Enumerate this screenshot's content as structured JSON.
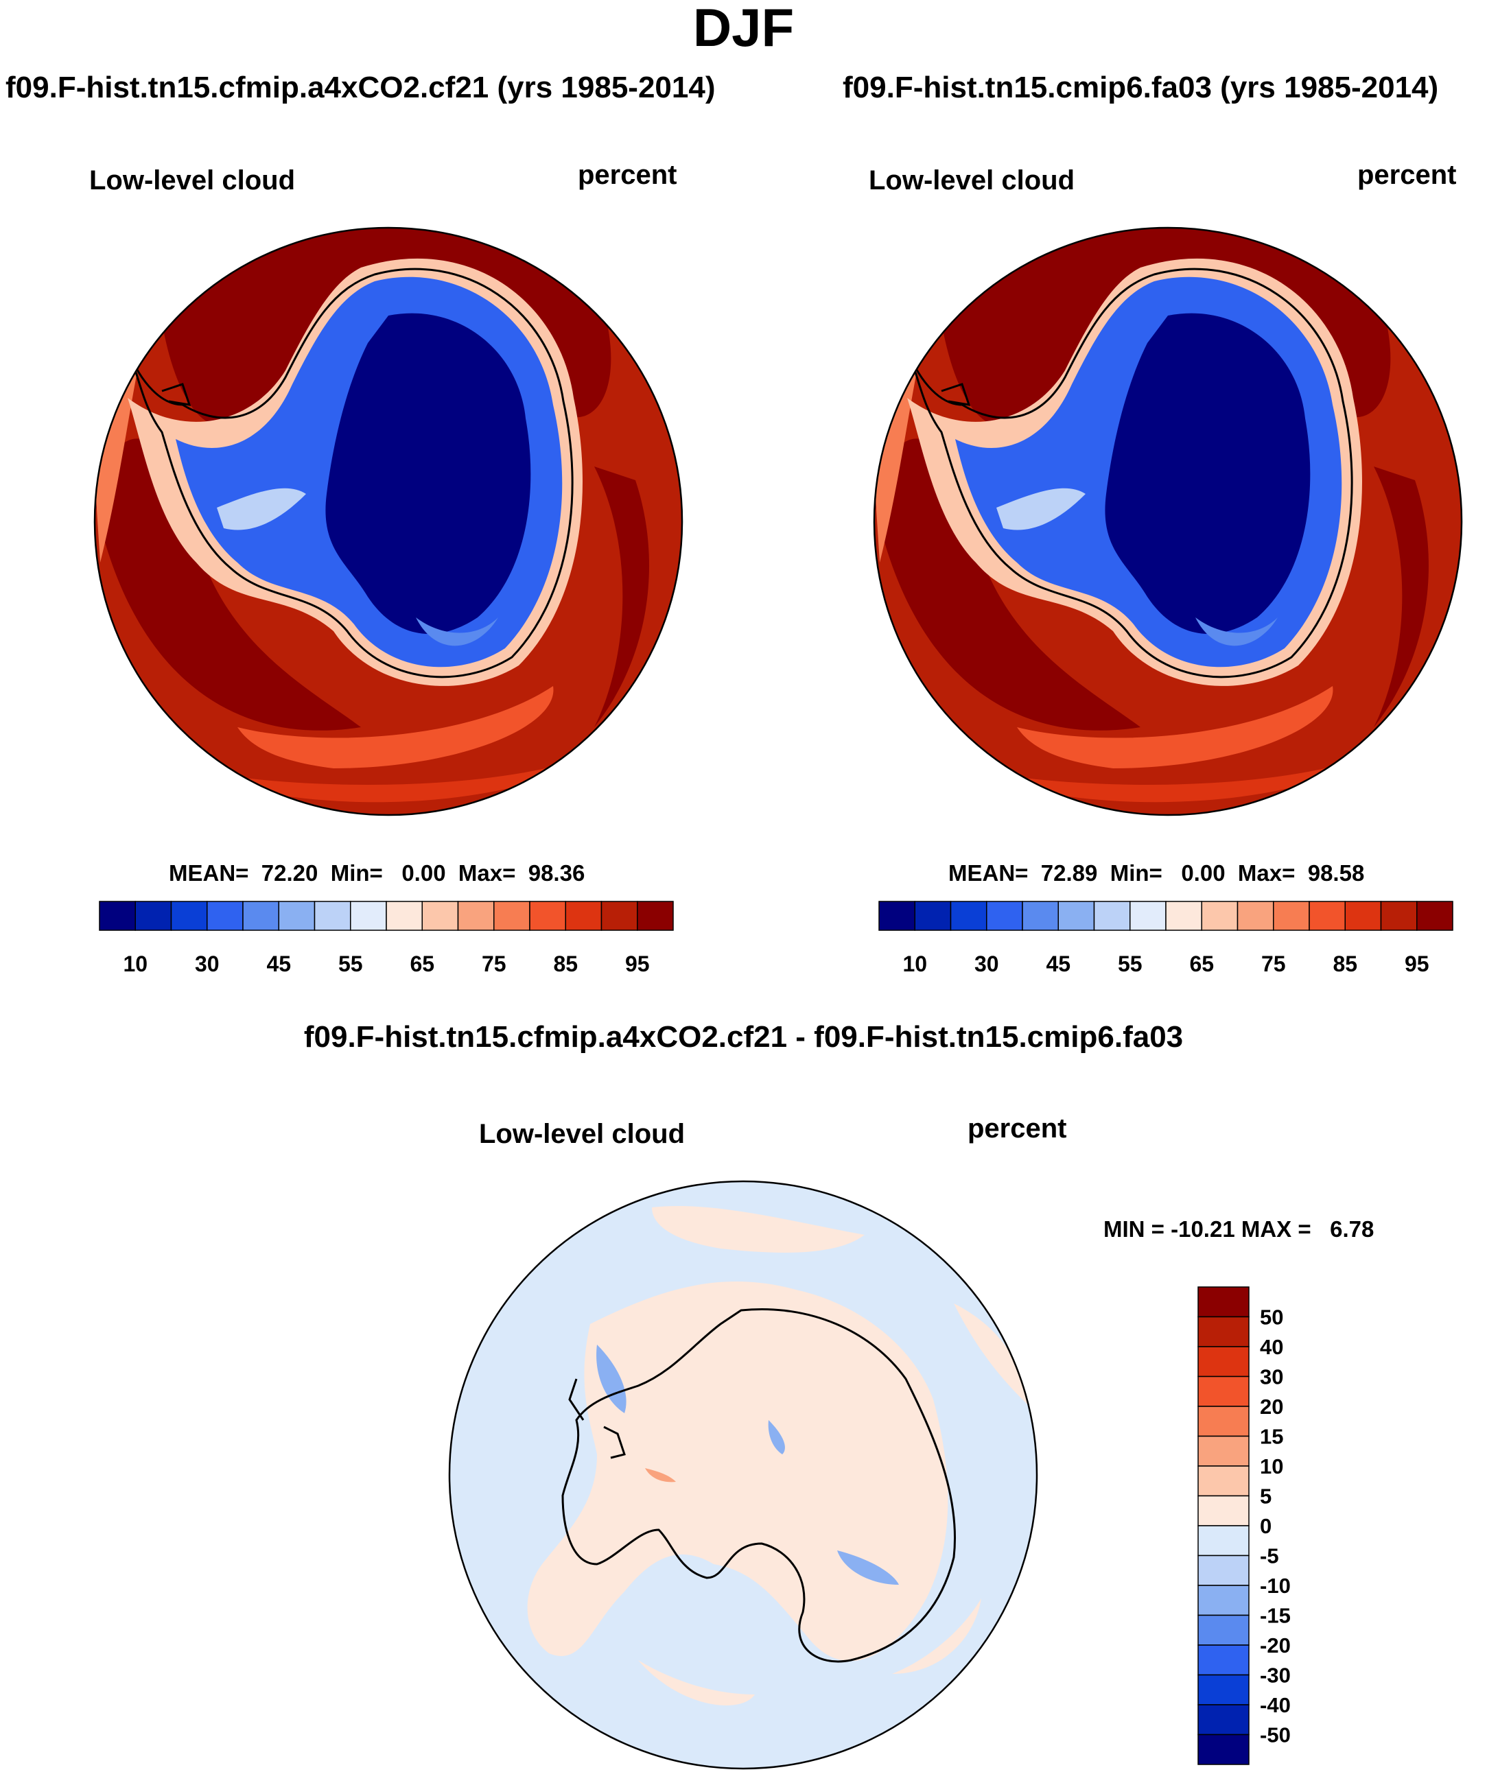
{
  "title": "DJF",
  "panels": [
    {
      "case": "f09.F-hist.tn15.cfmip.a4xCO2.cf21 (yrs 1985-2014)",
      "variable": "Low-level cloud",
      "units": "percent",
      "mean_label": "MEAN=",
      "mean": "72.20",
      "min_label": "Min=",
      "min": "0.00",
      "max_label": "Max=",
      "max": "98.36"
    },
    {
      "case": "f09.F-hist.tn15.cmip6.fa03 (yrs 1985-2014)",
      "variable": "Low-level cloud",
      "units": "percent",
      "mean_label": "MEAN=",
      "mean": "72.89",
      "min_label": "Min=",
      "min": "0.00",
      "max_label": "Max=",
      "max": "98.58"
    }
  ],
  "abs_colorbar": {
    "labels": [
      "10",
      "30",
      "45",
      "55",
      "65",
      "75",
      "85",
      "95"
    ],
    "colors": [
      "#00007f",
      "#0022b0",
      "#0a3fd6",
      "#2f62f0",
      "#5a8aef",
      "#8ab0f2",
      "#bcd2f7",
      "#e2ecfb",
      "#fde8dc",
      "#fcc7ab",
      "#f9a37e",
      "#f77d52",
      "#f2542b",
      "#dd3411",
      "#b81f06",
      "#8b0000"
    ]
  },
  "diff": {
    "title": "f09.F-hist.tn15.cfmip.a4xCO2.cf21 - f09.F-hist.tn15.cmip6.fa03",
    "variable": "Low-level cloud",
    "units": "percent",
    "minmax_text": "MIN = -10.21 MAX =   6.78",
    "colorbar_labels": [
      "50",
      "40",
      "30",
      "20",
      "15",
      "10",
      "5",
      "0",
      "-5",
      "-10",
      "-15",
      "-20",
      "-30",
      "-40",
      "-50"
    ],
    "colors": [
      "#8b0000",
      "#b81f06",
      "#dd3411",
      "#f2542b",
      "#f77d52",
      "#f9a37e",
      "#fcc7ab",
      "#fde8dc",
      "#dae9fa",
      "#bcd2f7",
      "#8ab0f2",
      "#5a8aef",
      "#2f62f0",
      "#0a3fd6",
      "#0022b0",
      "#00007f"
    ]
  },
  "colors": {
    "ocean_fill": "#b81f06",
    "antarctic_interior": "#00007f",
    "diff_background": "#dae9fa",
    "diff_positive": "#fde8dc"
  }
}
